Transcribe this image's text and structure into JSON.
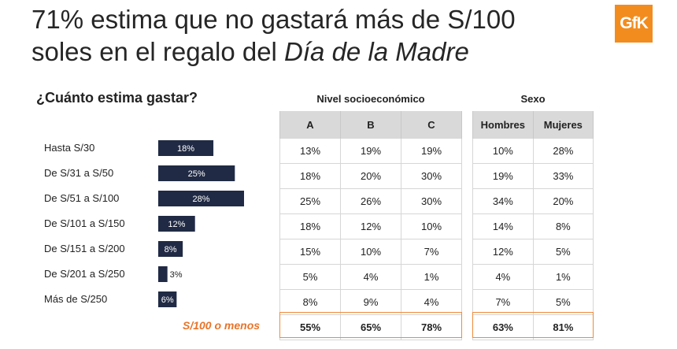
{
  "title": {
    "line1": "71% estima que no gastará más de S/100",
    "line2_prefix": "soles en el regalo del ",
    "line2_italic": "Día de la Madre"
  },
  "logo_text": "GfK",
  "question": "¿Cuánto estima gastar?",
  "summary_label": "S/100 o menos",
  "colors": {
    "bar": "#202a44",
    "accent": "#e8742a",
    "logo": "#f28c1f",
    "header": "#d9d9d9"
  },
  "chart_data": {
    "type": "bar",
    "orientation": "horizontal",
    "categories": [
      "Hasta S/30",
      "De S/31 a S/50",
      "De S/51 a S/100",
      "De S/101 a S/150",
      "De S/151 a S/200",
      "De S/201 a S/250",
      "Más de S/250"
    ],
    "values": [
      18,
      25,
      28,
      12,
      8,
      3,
      6
    ],
    "value_suffix": "%",
    "xlim": [
      0,
      28
    ]
  },
  "tables": {
    "nse": {
      "title": "Nivel socioeconómico",
      "headers": [
        "A",
        "B",
        "C"
      ],
      "rows": [
        [
          "13%",
          "19%",
          "19%"
        ],
        [
          "18%",
          "20%",
          "30%"
        ],
        [
          "25%",
          "26%",
          "30%"
        ],
        [
          "18%",
          "12%",
          "10%"
        ],
        [
          "15%",
          "10%",
          "7%"
        ],
        [
          "5%",
          "4%",
          "1%"
        ],
        [
          "8%",
          "9%",
          "4%"
        ]
      ],
      "summary": [
        "55%",
        "65%",
        "78%"
      ]
    },
    "sexo": {
      "title": "Sexo",
      "headers": [
        "Hombres",
        "Mujeres"
      ],
      "rows": [
        [
          "10%",
          "28%"
        ],
        [
          "19%",
          "33%"
        ],
        [
          "34%",
          "20%"
        ],
        [
          "14%",
          "8%"
        ],
        [
          "12%",
          "5%"
        ],
        [
          "4%",
          "1%"
        ],
        [
          "7%",
          "5%"
        ]
      ],
      "summary": [
        "63%",
        "81%"
      ]
    }
  }
}
